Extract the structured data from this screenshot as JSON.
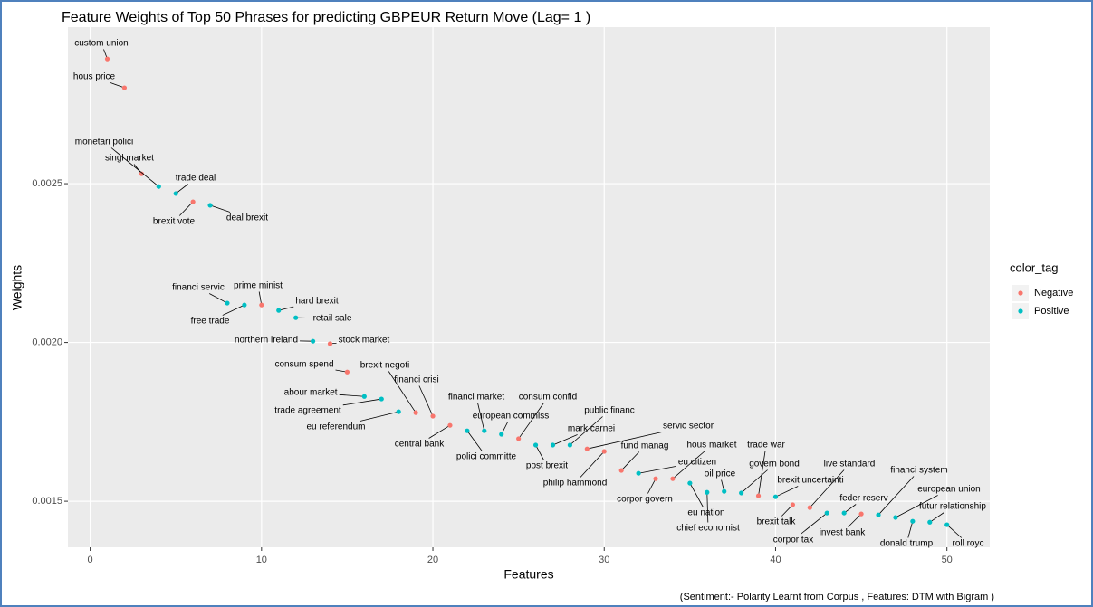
{
  "chart_data": {
    "type": "scatter",
    "title": "Feature Weights of Top 50 Phrases for predicting GBPEUR Return Move (Lag= 1 )",
    "x_label": "Features",
    "y_label": "Weights",
    "legend_title": "color_tag",
    "caption": "(Sentiment:- Polarity Learnt from Corpus , Features: DTM with Bigram )",
    "xlim": [
      -1.3,
      52.5
    ],
    "xticks": [
      0,
      10,
      20,
      30,
      40,
      50
    ],
    "ylim": [
      0.001355,
      0.002993
    ],
    "yticks": [
      0.0015,
      {
        "value": 0.002,
        "label": "0.0020"
      },
      0.0025
    ],
    "grid": true,
    "series": [
      {
        "name": "Negative",
        "color": "#F8766D",
        "x": [
          1,
          2,
          3,
          6,
          10,
          14,
          15,
          19,
          20,
          21,
          25,
          29,
          30,
          31,
          33,
          34,
          39,
          41,
          42,
          45
        ],
        "values": [
          0.002893,
          0.002802,
          0.002531,
          0.002443,
          0.002118,
          0.001996,
          0.001907,
          0.001779,
          0.001768,
          0.001739,
          0.001697,
          0.001665,
          0.001657,
          0.001597,
          0.001571,
          0.001571,
          0.001517,
          0.001489,
          0.00148,
          0.00146
        ],
        "labels": [
          "custom union",
          "hous price",
          "singl market",
          "brexit vote",
          "prime minist",
          "stock market",
          "consum spend",
          "brexit negoti",
          "financi crisi",
          "central bank",
          "consum confid",
          "servic sector",
          "philip hammond",
          "fund manag",
          "corpor govern",
          "hous market",
          "trade war",
          "brexit talk",
          "live standard",
          "invest bank"
        ]
      },
      {
        "name": "Positive",
        "color": "#00BFC4",
        "x": [
          4,
          5,
          7,
          8,
          9,
          11,
          12,
          13,
          16,
          17,
          18,
          22,
          23,
          24,
          26,
          27,
          28,
          32,
          35,
          36,
          37,
          38,
          40,
          43,
          44,
          46,
          47,
          48,
          49,
          50
        ],
        "values": [
          0.002491,
          0.002469,
          0.002432,
          0.002124,
          0.002118,
          0.002101,
          0.002078,
          0.002004,
          0.00183,
          0.001822,
          0.001782,
          0.001722,
          0.001722,
          0.001711,
          0.001677,
          0.001677,
          0.001677,
          0.001588,
          0.001557,
          0.001528,
          0.001531,
          0.001526,
          0.001514,
          0.001463,
          0.001463,
          0.001457,
          0.001449,
          0.001437,
          0.001434,
          0.001426
        ],
        "labels": [
          "monetari polici",
          "trade deal",
          "deal brexit",
          "financi servic",
          "free trade",
          "hard brexit",
          "retail sale",
          "northern ireland",
          "labour market",
          "trade agreement",
          "eu referendum",
          "polici committe",
          "financi market",
          "european commiss",
          "post brexit",
          "mark carnei",
          "public financ",
          "eu citizen",
          "eu nation",
          "chief economist",
          "oil price",
          "govern bond",
          "brexit uncertainti",
          "corpor tax",
          "feder reserv",
          "financi system",
          "european union",
          "donald trump",
          "futur relationship",
          "roll royc"
        ]
      }
    ]
  }
}
